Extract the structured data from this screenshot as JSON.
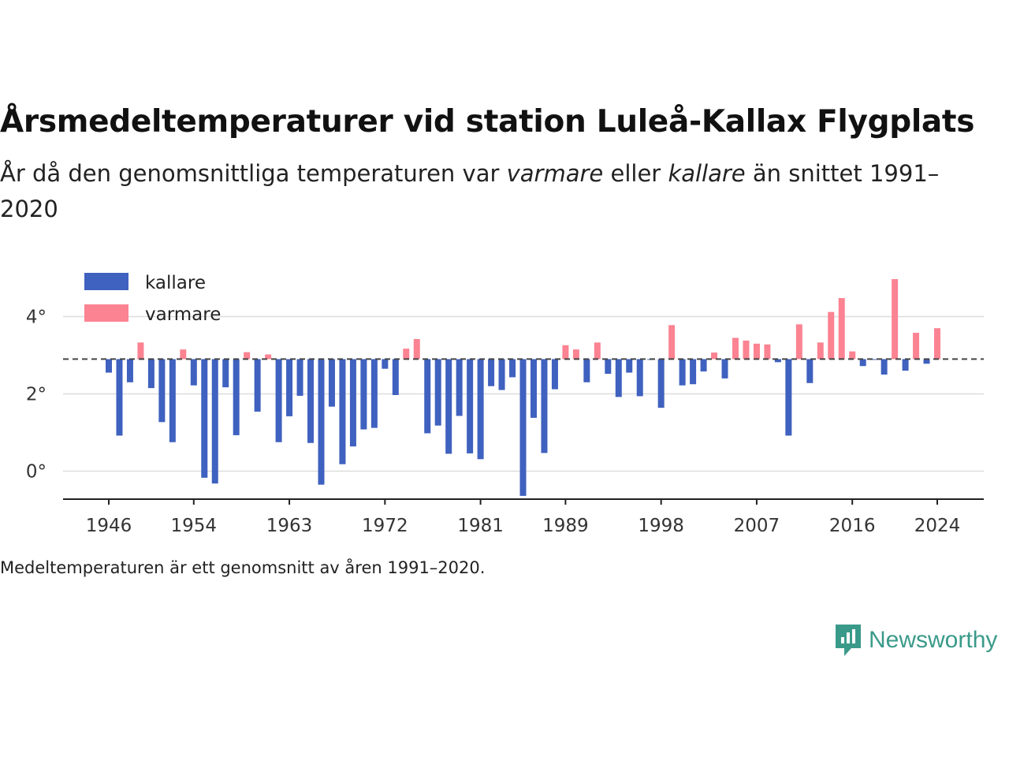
{
  "title": "Årsmedeltemperaturer vid station Luleå-Kallax Flygplats",
  "subtitle": {
    "part1": "År då den genomsnittliga temperaturen var ",
    "warmer": "varmare",
    "part2": " eller ",
    "colder": "kallare",
    "part3": " än snittet 1991–2020"
  },
  "note": "Medeltemperaturen är ett genomsnitt av åren 1991–2020.",
  "brand": "Newsworthy",
  "colors": {
    "colder": "#3f61bf",
    "warmer": "#fb8392",
    "grid": "#dddddd",
    "axis": "#222222",
    "reference": "#444444",
    "brand": "#3a9a8a"
  },
  "chart_data": {
    "type": "bar",
    "reference_value": 2.9,
    "legend": [
      {
        "label": "kallare",
        "color": "#3f61bf"
      },
      {
        "label": "varmare",
        "color": "#fb8392"
      }
    ],
    "legend_position": "top-left",
    "y_ticks": [
      {
        "value": 0,
        "label": "0°"
      },
      {
        "value": 2,
        "label": "2°"
      },
      {
        "value": 4,
        "label": "4°"
      }
    ],
    "x_ticks": [
      "1946",
      "1954",
      "1963",
      "1972",
      "1981",
      "1989",
      "1998",
      "2007",
      "2016",
      "2024"
    ],
    "xlim": [
      1946,
      2024
    ],
    "ylim": [
      -0.75,
      5.0
    ],
    "grid": true,
    "x": [
      1946,
      1947,
      1948,
      1949,
      1950,
      1951,
      1952,
      1953,
      1954,
      1955,
      1956,
      1957,
      1958,
      1959,
      1960,
      1961,
      1962,
      1963,
      1964,
      1965,
      1966,
      1967,
      1968,
      1969,
      1970,
      1971,
      1972,
      1973,
      1974,
      1975,
      1976,
      1977,
      1978,
      1979,
      1980,
      1981,
      1982,
      1983,
      1984,
      1985,
      1986,
      1987,
      1988,
      1989,
      1990,
      1991,
      1992,
      1993,
      1994,
      1995,
      1996,
      1997,
      1998,
      1999,
      2000,
      2001,
      2002,
      2003,
      2004,
      2005,
      2006,
      2007,
      2008,
      2009,
      2010,
      2011,
      2012,
      2013,
      2014,
      2015,
      2016,
      2017,
      2018,
      2019,
      2020,
      2021,
      2022,
      2023,
      2024
    ],
    "values": [
      2.55,
      0.92,
      2.3,
      3.33,
      2.15,
      1.27,
      0.75,
      3.15,
      2.22,
      -0.17,
      -0.32,
      2.17,
      0.93,
      3.08,
      1.54,
      3.02,
      0.75,
      1.42,
      1.95,
      0.73,
      -0.35,
      1.67,
      0.18,
      0.64,
      1.08,
      1.12,
      2.65,
      1.97,
      3.17,
      3.42,
      0.98,
      1.18,
      0.45,
      1.43,
      0.46,
      0.31,
      2.2,
      2.1,
      2.43,
      -0.64,
      1.38,
      0.47,
      2.12,
      3.26,
      3.15,
      2.3,
      3.33,
      2.52,
      1.92,
      2.55,
      1.94,
      2.88,
      1.64,
      3.78,
      2.22,
      2.25,
      2.58,
      3.07,
      2.4,
      3.45,
      3.38,
      3.3,
      3.28,
      2.82,
      0.92,
      3.8,
      2.28,
      3.33,
      4.12,
      4.48,
      3.1,
      2.72,
      2.88,
      2.5,
      4.97,
      2.6,
      3.58,
      2.78,
      3.7
    ]
  }
}
